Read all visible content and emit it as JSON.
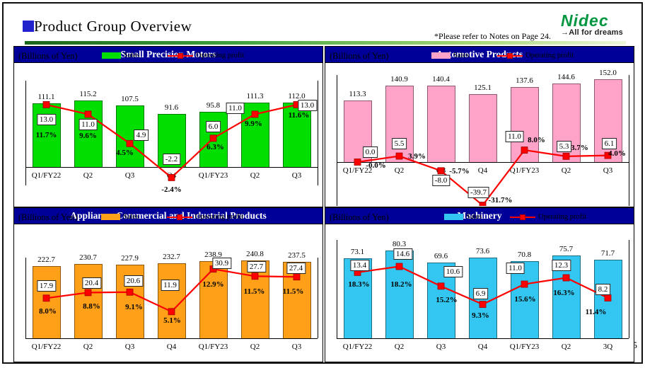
{
  "slide": {
    "title": "Product Group Overview",
    "note": "*Please refer to Notes on Page 24.",
    "logo": {
      "name": "Nidec",
      "tagline": "→All for dreams",
      "color": "#009640"
    },
    "page_number": "5",
    "colors": {
      "title_bullet": "#2222CC",
      "panel_header_bg": "#000099",
      "panel_header_text": "#FFFFFF",
      "divider_gradient": [
        "#1a661a",
        "#3fa23f",
        "#a8d878",
        "#eef7dc"
      ]
    }
  },
  "chart_data": [
    {
      "type": "bar",
      "overlay": "line",
      "title": "Small Precision Motors",
      "unit_label": "(Billions of Yen)",
      "categories": [
        "Q1/FY22",
        "Q2",
        "Q3",
        "Q4",
        "Q1/FY23",
        "Q2",
        "Q3"
      ],
      "bar_axis": {
        "min": 0,
        "max": 150
      },
      "line_axis": {
        "min": -5,
        "max": 18
      },
      "legend_position": "top",
      "series": [
        {
          "name": "Sales",
          "chart_type": "bar",
          "color": "#00DF00",
          "values": [
            111.1,
            115.2,
            107.5,
            91.6,
            95.8,
            111.3,
            112.0
          ],
          "value_labels": [
            "111.1",
            "115.2",
            "107.5",
            "91.6",
            "95.8",
            "111.3",
            "112.0"
          ]
        },
        {
          "name": "Operating profit",
          "chart_type": "line",
          "color": "#FF0000",
          "values": [
            13.0,
            11.0,
            4.9,
            -2.2,
            6.0,
            11.0,
            13.0
          ],
          "value_labels": [
            "13.0",
            "11.0",
            "4.9",
            "-2.2",
            "6.0",
            "11.0",
            "13.0"
          ],
          "percent_labels": [
            "11.7%",
            "9.6%",
            "4.5%",
            "-2.4%",
            "6.3%",
            "9.9%",
            "11.6%"
          ]
        }
      ]
    },
    {
      "type": "bar",
      "overlay": "line",
      "title": "Automotive Products",
      "unit_label": "(Billions of Yen)",
      "categories": [
        "Q1/FY22",
        "Q2",
        "Q3",
        "Q4",
        "Q1/FY23",
        "Q2",
        "Q3"
      ],
      "bar_axis": {
        "min": 0,
        "max": 160
      },
      "line_axis": {
        "min": -45,
        "max": 80
      },
      "legend_position": "top",
      "series": [
        {
          "name": "Sales",
          "chart_type": "bar",
          "color": "#FFA3C9",
          "values": [
            113.3,
            140.9,
            140.4,
            125.1,
            137.6,
            144.6,
            152.0
          ],
          "value_labels": [
            "113.3",
            "140.9",
            "140.4",
            "125.1",
            "137.6",
            "144.6",
            "152.0"
          ]
        },
        {
          "name": "Operating profit",
          "chart_type": "line",
          "color": "#FF0000",
          "values": [
            0.0,
            5.5,
            -8.0,
            -39.7,
            11.0,
            5.3,
            6.1
          ],
          "value_labels": [
            "0.0",
            "5.5",
            "-8.0",
            "-39.7",
            "11.0",
            "5.3",
            "6.1"
          ],
          "percent_labels": [
            "-0.0%",
            "3.9%",
            "-5.7%",
            "-31.7%",
            "8.0%",
            "3.7%",
            "4.0%"
          ]
        }
      ]
    },
    {
      "type": "bar",
      "overlay": "line",
      "title": "Appliance, Commercial and Industrial Products",
      "unit_label": "(Billions of Yen)",
      "categories": [
        "Q1/FY22",
        "Q2",
        "Q3",
        "Q4",
        "Q1/FY23",
        "Q2",
        "Q3"
      ],
      "bar_axis": {
        "min": 0,
        "max": 250
      },
      "line_axis": {
        "min": 0,
        "max": 36
      },
      "legend_position": "top",
      "series": [
        {
          "name": "Sales",
          "chart_type": "bar",
          "color": "#FFA018",
          "values": [
            222.7,
            230.7,
            227.9,
            232.7,
            238.9,
            240.8,
            237.5
          ],
          "value_labels": [
            "222.7",
            "230.7",
            "227.9",
            "232.7",
            "238.9",
            "240.8",
            "237.5"
          ]
        },
        {
          "name": "Operating profit",
          "chart_type": "line",
          "color": "#FF0000",
          "values": [
            17.9,
            20.4,
            20.6,
            11.9,
            30.9,
            27.7,
            27.4
          ],
          "value_labels": [
            "17.9",
            "20.4",
            "20.6",
            "11.9",
            "30.9",
            "27.7",
            "27.4"
          ],
          "percent_labels": [
            "8.0%",
            "8.8%",
            "9.1%",
            "5.1%",
            "12.9%",
            "11.5%",
            "11.5%"
          ]
        }
      ]
    },
    {
      "type": "bar",
      "overlay": "line",
      "title": "Machinery",
      "unit_label": "(Billions of Yen)",
      "categories": [
        "Q1/FY22",
        "Q2",
        "Q3",
        "Q4",
        "Q1/FY23",
        "Q2",
        "3Q"
      ],
      "bar_axis": {
        "min": 0,
        "max": 90
      },
      "line_axis": {
        "min": 0,
        "max": 20
      },
      "legend_position": "top",
      "series": [
        {
          "name": "Sales",
          "chart_type": "bar",
          "color": "#33C6F0",
          "values": [
            73.1,
            80.3,
            69.6,
            73.6,
            70.8,
            75.7,
            71.7
          ],
          "value_labels": [
            "73.1",
            "80.3",
            "69.6",
            "73.6",
            "70.8",
            "75.7",
            "71.7"
          ]
        },
        {
          "name": "Operating profit",
          "chart_type": "line",
          "color": "#FF0000",
          "values": [
            13.4,
            14.6,
            10.6,
            6.9,
            11.0,
            12.3,
            8.2
          ],
          "value_labels": [
            "13.4",
            "14.6",
            "10.6",
            "6.9",
            "11.0",
            "12.3",
            "8.2"
          ],
          "percent_labels": [
            "18.3%",
            "18.2%",
            "15.2%",
            "9.3%",
            "15.6%",
            "16.3%",
            "11.4%"
          ]
        }
      ]
    }
  ]
}
